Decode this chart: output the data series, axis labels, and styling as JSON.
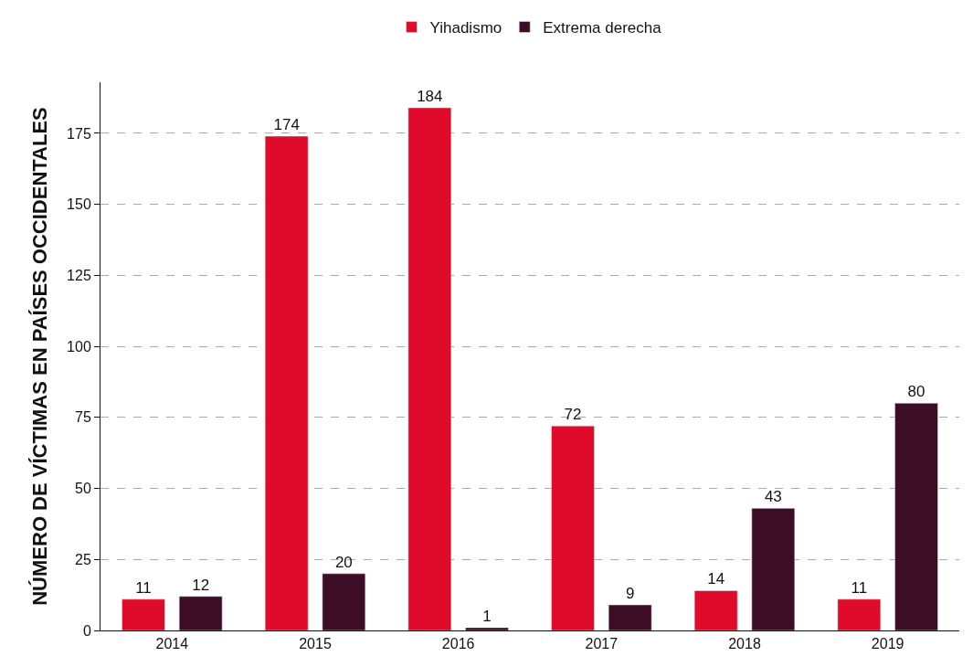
{
  "chart_data": {
    "type": "bar",
    "ylabel": "NÚMERO DE VÍCTIMAS EN PAÍSES OCCIDENTALES",
    "categories": [
      "2014",
      "2015",
      "2016",
      "2017",
      "2018",
      "2019"
    ],
    "series": [
      {
        "name": "Yihadismo",
        "color": "#e00b2a",
        "values": [
          11,
          174,
          184,
          72,
          14,
          11
        ]
      },
      {
        "name": "Extrema derecha",
        "color": "#3d0d26",
        "values": [
          12,
          20,
          1,
          9,
          43,
          80
        ]
      }
    ],
    "ylim": [
      0,
      193
    ],
    "yticks": [
      0,
      25,
      50,
      75,
      100,
      125,
      150,
      175
    ],
    "grid": "y",
    "legend": "top",
    "data_labels": true
  }
}
